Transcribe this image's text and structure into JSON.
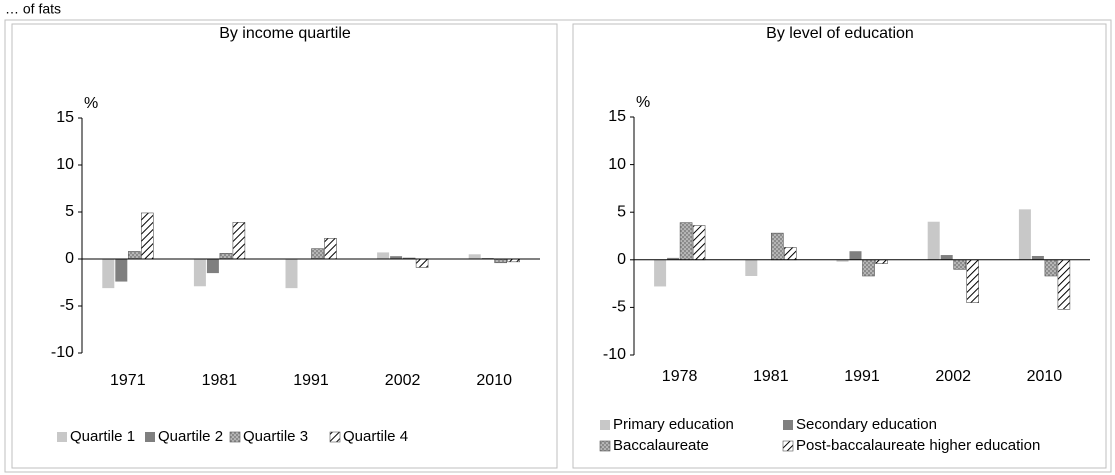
{
  "heading": "… of fats",
  "chart_data": [
    {
      "type": "bar",
      "title": "By income quartile",
      "y_label": "%",
      "categories": [
        "1971",
        "1981",
        "1991",
        "2002",
        "2010"
      ],
      "series": [
        {
          "name": "Quartile 1",
          "color": "#c8c8c8",
          "pattern": "solid",
          "values": [
            -3.1,
            -2.9,
            -3.1,
            0.7,
            0.5
          ]
        },
        {
          "name": "Quartile 2",
          "color": "#7f7f7f",
          "pattern": "solid",
          "values": [
            -2.4,
            -1.5,
            0,
            0.3,
            0.1
          ]
        },
        {
          "name": "Quartile 3",
          "color": "#a6a6a6",
          "pattern": "dots",
          "values": [
            0.8,
            0.6,
            1.1,
            0.1,
            -0.4
          ]
        },
        {
          "name": "Quartile 4",
          "color": "#000000",
          "pattern": "hatch",
          "values": [
            4.9,
            3.9,
            2.2,
            -0.9,
            -0.3
          ]
        }
      ],
      "ylim": [
        -10,
        15
      ],
      "yticks": [
        -10,
        -5,
        0,
        5,
        10,
        15
      ],
      "grid": false
    },
    {
      "type": "bar",
      "title": "By level of education",
      "y_label": "%",
      "categories": [
        "1978",
        "1981",
        "1991",
        "2002",
        "2010"
      ],
      "series": [
        {
          "name": "Primary  education",
          "color": "#c8c8c8",
          "pattern": "solid",
          "values": [
            -2.8,
            -1.7,
            -0.2,
            4.0,
            5.3
          ]
        },
        {
          "name": "Secondary education",
          "color": "#7f7f7f",
          "pattern": "solid",
          "values": [
            0.2,
            0,
            0.9,
            0.5,
            0.4
          ]
        },
        {
          "name": "Baccalaureate",
          "color": "#a6a6a6",
          "pattern": "dots",
          "values": [
            3.9,
            2.8,
            -1.7,
            -1.0,
            -1.7
          ]
        },
        {
          "name": "Post-baccalaureate higher education",
          "color": "#000000",
          "pattern": "hatch",
          "values": [
            3.6,
            1.3,
            -0.4,
            -4.5,
            -5.2
          ]
        }
      ],
      "ylim": [
        -10,
        15
      ],
      "yticks": [
        -10,
        -5,
        0,
        5,
        10,
        15
      ],
      "grid": false
    }
  ]
}
